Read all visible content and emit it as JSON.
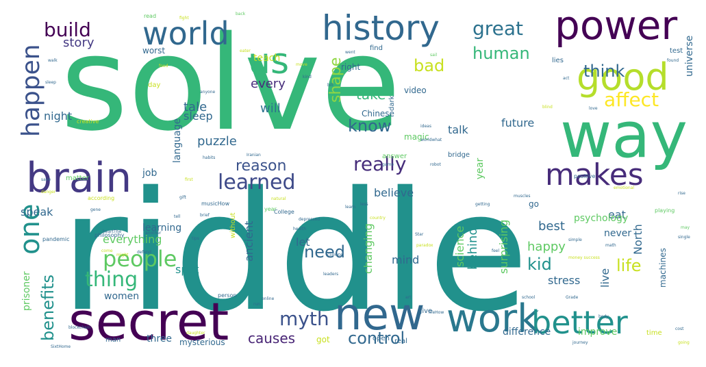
{
  "colors": {
    "green": "#35b779",
    "teal": "#21918c",
    "blue": "#31688e",
    "indigo": "#443983",
    "purple": "#440154",
    "lime": "#90d743",
    "yellow": "#c8e020"
  },
  "words": [
    {
      "id": "solve",
      "text": "solve",
      "color": "#35b779"
    },
    {
      "id": "riddle",
      "text": "riddle",
      "color": "#21918c"
    },
    {
      "id": "way",
      "text": "way",
      "color": "#35b779"
    },
    {
      "id": "secret",
      "text": "secret",
      "color": "#440154"
    },
    {
      "id": "history",
      "text": "history",
      "color": "#31688e"
    },
    {
      "id": "power",
      "text": "power",
      "color": "#440154"
    },
    {
      "id": "new",
      "text": "new",
      "color": "#31688e"
    },
    {
      "id": "work",
      "text": "work",
      "color": "#2a788e"
    },
    {
      "id": "brain",
      "text": "brain",
      "color": "#443983"
    },
    {
      "id": "world",
      "text": "world",
      "color": "#31688e"
    },
    {
      "id": "good",
      "text": "good",
      "color": "#b5de2b"
    },
    {
      "id": "us",
      "text": "us",
      "color": "#35b779"
    },
    {
      "id": "better",
      "text": "better",
      "color": "#21918c"
    },
    {
      "id": "makes",
      "text": "makes",
      "color": "#472c7a"
    },
    {
      "id": "happen",
      "text": "happen",
      "color": "#3b528b"
    },
    {
      "id": "one",
      "text": "one",
      "color": "#21918c"
    },
    {
      "id": "learned",
      "text": "learned",
      "color": "#3e4a89"
    },
    {
      "id": "people",
      "text": "people",
      "color": "#5ec962"
    },
    {
      "id": "thing",
      "text": "thing",
      "color": "#35b779"
    },
    {
      "id": "really",
      "text": "really",
      "color": "#472d7b"
    },
    {
      "id": "myth",
      "text": "myth",
      "color": "#3b528b"
    },
    {
      "id": "affect",
      "text": "affect",
      "color": "#fde725"
    },
    {
      "id": "great",
      "text": "great",
      "color": "#2c728e"
    },
    {
      "id": "build",
      "text": "build",
      "color": "#440154"
    },
    {
      "id": "know",
      "text": "know",
      "color": "#31688e"
    },
    {
      "id": "think",
      "text": "think",
      "color": "#31688e"
    },
    {
      "id": "human",
      "text": "human",
      "color": "#35b779"
    },
    {
      "id": "bad",
      "text": "bad",
      "color": "#c8e020"
    },
    {
      "id": "control",
      "text": "control",
      "color": "#31688e"
    },
    {
      "id": "benefits",
      "text": "benefits",
      "color": "#21918c"
    },
    {
      "id": "life",
      "text": "life",
      "color": "#c8e020"
    },
    {
      "id": "kid",
      "text": "kid",
      "color": "#21918c"
    },
    {
      "id": "need",
      "text": "need",
      "color": "#31688e"
    },
    {
      "id": "reason",
      "text": "reason",
      "color": "#3b528b"
    },
    {
      "id": "causes",
      "text": "causes",
      "color": "#482475"
    },
    {
      "id": "shape",
      "text": "shape",
      "color": "#90d743"
    },
    {
      "id": "take",
      "text": "take",
      "color": "#35b779"
    },
    {
      "id": "story",
      "text": "story",
      "color": "#443983"
    },
    {
      "id": "every",
      "text": "every",
      "color": "#472d7b"
    },
    {
      "id": "will",
      "text": "will",
      "color": "#2c728e"
    },
    {
      "id": "tale",
      "text": "tale",
      "color": "#31688e"
    },
    {
      "id": "sleep",
      "text": "sleep",
      "color": "#31688e"
    },
    {
      "id": "puzzle",
      "text": "puzzle",
      "color": "#31688e"
    },
    {
      "id": "night",
      "text": "night",
      "color": "#31688e"
    },
    {
      "id": "future",
      "text": "future",
      "color": "#31688e"
    },
    {
      "id": "talk",
      "text": "talk",
      "color": "#31688e"
    },
    {
      "id": "believe",
      "text": "believe",
      "color": "#31688e"
    },
    {
      "id": "behind",
      "text": "behind",
      "color": "#21918c"
    },
    {
      "id": "happy",
      "text": "happy",
      "color": "#5ec962"
    },
    {
      "id": "best",
      "text": "best",
      "color": "#31688e"
    },
    {
      "id": "eat",
      "text": "eat",
      "color": "#31688e"
    },
    {
      "id": "let",
      "text": "let",
      "color": "#31688e"
    },
    {
      "id": "mind",
      "text": "mind",
      "color": "#31688e"
    },
    {
      "id": "speak",
      "text": "speak",
      "color": "#31688e"
    },
    {
      "id": "everything",
      "text": "everything",
      "color": "#5ec962"
    },
    {
      "id": "ancient",
      "text": "ancient",
      "color": "#31688e"
    },
    {
      "id": "spot",
      "text": "spot",
      "color": "#21918c"
    },
    {
      "id": "women",
      "text": "women",
      "color": "#31688e"
    },
    {
      "id": "stress",
      "text": "stress",
      "color": "#31688e"
    },
    {
      "id": "live",
      "text": "live",
      "color": "#31688e"
    },
    {
      "id": "North",
      "text": "North",
      "color": "#31688e"
    },
    {
      "id": "science",
      "text": "science",
      "color": "#5ec962"
    },
    {
      "id": "surprising",
      "text": "surprising",
      "color": "#5ec962"
    },
    {
      "id": "changing",
      "text": "changing",
      "color": "#5ec962"
    },
    {
      "id": "year",
      "text": "year",
      "color": "#5ec962"
    },
    {
      "id": "language",
      "text": "language",
      "color": "#31688e"
    },
    {
      "id": "prisoner",
      "text": "prisoner",
      "color": "#5ec962"
    },
    {
      "id": "universe",
      "text": "universe",
      "color": "#31688e"
    },
    {
      "id": "psychology",
      "text": "psychology",
      "color": "#5ec962"
    },
    {
      "id": "machines",
      "text": "machines",
      "color": "#31688e"
    },
    {
      "id": "difference",
      "text": "difference",
      "color": "#31688e"
    },
    {
      "id": "improve",
      "text": "improve",
      "color": "#5ec962"
    },
    {
      "id": "mysterious",
      "text": "mysterious",
      "color": "#31688e"
    },
    {
      "id": "three",
      "text": "three",
      "color": "#31688e"
    },
    {
      "id": "never",
      "text": "never",
      "color": "#31688e"
    },
    {
      "id": "job",
      "text": "job",
      "color": "#31688e"
    },
    {
      "id": "learning",
      "text": "learning",
      "color": "#31688e"
    },
    {
      "id": "video",
      "text": "video",
      "color": "#31688e"
    },
    {
      "id": "Chinese",
      "text": "Chinese",
      "color": "#31688e"
    },
    {
      "id": "right",
      "text": "right",
      "color": "#31688e"
    },
    {
      "id": "teach",
      "text": "teach",
      "color": "#c8e020"
    },
    {
      "id": "worst",
      "text": "worst",
      "color": "#31688e"
    },
    {
      "id": "day",
      "text": "day",
      "color": "#c8e020"
    },
    {
      "id": "magic",
      "text": "magic",
      "color": "#5ec962"
    },
    {
      "id": "got",
      "text": "got",
      "color": "#c8e020"
    },
    {
      "id": "man",
      "text": "man",
      "color": "#31688e"
    },
    {
      "id": "go",
      "text": "go",
      "color": "#31688e"
    },
    {
      "id": "give",
      "text": "give",
      "color": "#31688e"
    },
    {
      "id": "real",
      "text": "real",
      "color": "#31688e"
    },
    {
      "id": "open",
      "text": "open",
      "color": "#31688e"
    },
    {
      "id": "dark",
      "text": "dark",
      "color": "#31688e"
    },
    {
      "id": "answer",
      "text": "answer",
      "color": "#5ec962"
    },
    {
      "id": "without",
      "text": "without",
      "color": "#c8e020"
    },
    {
      "id": "time",
      "text": "time",
      "color": "#c8e020"
    },
    {
      "id": "test",
      "text": "test",
      "color": "#31688e"
    },
    {
      "id": "lies",
      "text": "lies",
      "color": "#31688e"
    },
    {
      "id": "find",
      "text": "find",
      "color": "#31688e"
    },
    {
      "id": "bridge",
      "text": "bridge",
      "color": "#31688e"
    },
    {
      "id": "read",
      "text": "read",
      "color": "#5ec962"
    },
    {
      "id": "fight",
      "text": "fight",
      "color": "#c8e020"
    },
    {
      "id": "matter",
      "text": "matter",
      "color": "#5ec962"
    },
    {
      "id": "creative",
      "text": "creative",
      "color": "#c8e020"
    },
    {
      "id": "according",
      "text": "according",
      "color": "#c8e020"
    },
    {
      "id": "musicHow",
      "text": "musicHow",
      "color": "#31688e"
    },
    {
      "id": "year2",
      "text": "year",
      "color": "#5ec962"
    },
    {
      "id": "eat2",
      "text": "College",
      "color": "#31688e"
    },
    {
      "id": "philosophy",
      "text": "philosophy",
      "color": "#31688e"
    },
    {
      "id": "pandemic",
      "text": "pandemic",
      "color": "#31688e"
    },
    {
      "id": "food",
      "text": "food",
      "color": "#c8e020"
    },
    {
      "id": "health",
      "text": "health",
      "color": "#31688e"
    },
    {
      "id": "leaders",
      "text": "leaders",
      "color": "#31688e"
    },
    {
      "id": "robot",
      "text": "robot",
      "color": "#31688e"
    },
    {
      "id": "game",
      "text": "game",
      "color": "#31688e"
    },
    {
      "id": "positive",
      "text": "positive",
      "color": "#31688e"
    },
    {
      "id": "emotional",
      "text": "emotional",
      "color": "#c8e020"
    },
    {
      "id": "playing",
      "text": "playing",
      "color": "#5ec962"
    },
    {
      "id": "rise",
      "text": "rise",
      "color": "#31688e"
    },
    {
      "id": "may",
      "text": "may",
      "color": "#5ec962"
    },
    {
      "id": "single",
      "text": "single",
      "color": "#31688e"
    },
    {
      "id": "love",
      "text": "love",
      "color": "#31688e"
    },
    {
      "id": "simple",
      "text": "simple",
      "color": "#31688e"
    },
    {
      "id": "math",
      "text": "math",
      "color": "#31688e"
    },
    {
      "id": "money",
      "text": "money success",
      "color": "#c8e020"
    },
    {
      "id": "school",
      "text": "school",
      "color": "#31688e"
    },
    {
      "id": "grade",
      "text": "Grade",
      "color": "#31688e"
    },
    {
      "id": "body",
      "text": "body",
      "color": "#31688e"
    },
    {
      "id": "journey",
      "text": "journey",
      "color": "#31688e"
    },
    {
      "id": "going",
      "text": "going",
      "color": "#c8e020"
    },
    {
      "id": "cost",
      "text": "cost",
      "color": "#31688e"
    },
    {
      "id": "star",
      "text": "Star",
      "color": "#31688e"
    },
    {
      "id": "another",
      "text": "another",
      "color": "#31688e"
    },
    {
      "id": "person",
      "text": "person",
      "color": "#31688e"
    },
    {
      "id": "online",
      "text": "online",
      "color": "#31688e"
    },
    {
      "id": "climate",
      "text": "climate",
      "color": "#31688e"
    },
    {
      "id": "paradox",
      "text": "paradox",
      "color": "#c8e020"
    },
    {
      "id": "art",
      "text": "art",
      "color": "#31688e"
    },
    {
      "id": "run",
      "text": "run",
      "color": "#31688e"
    },
    {
      "id": "feel",
      "text": "feel",
      "color": "#31688e"
    },
    {
      "id": "country",
      "text": "country",
      "color": "#c8e020"
    },
    {
      "id": "getting",
      "text": "getting",
      "color": "#31688e"
    },
    {
      "id": "less",
      "text": "less",
      "color": "#31688e"
    },
    {
      "id": "learn",
      "text": "learn",
      "color": "#31688e"
    },
    {
      "id": "depressed",
      "text": "depressed",
      "color": "#31688e"
    },
    {
      "id": "natural",
      "text": "natural",
      "color": "#c8e020"
    },
    {
      "id": "brief",
      "text": "brief",
      "color": "#31688e"
    },
    {
      "id": "habits",
      "text": "habits",
      "color": "#31688e"
    },
    {
      "id": "Iranian",
      "text": "Iranian",
      "color": "#31688e"
    },
    {
      "id": "worldwhat",
      "text": "worldwhat",
      "color": "#31688e"
    },
    {
      "id": "ideas",
      "text": "ideas",
      "color": "#31688e"
    },
    {
      "id": "bill",
      "text": "bill",
      "color": "#31688e"
    },
    {
      "id": "anyone",
      "text": "anyone",
      "color": "#31688e"
    },
    {
      "id": "kind",
      "text": "kind",
      "color": "#31688e"
    },
    {
      "id": "move",
      "text": "move",
      "color": "#c8e020"
    },
    {
      "id": "danger",
      "text": "danger",
      "color": "#c8e020"
    },
    {
      "id": "save",
      "text": "save",
      "color": "#31688e"
    },
    {
      "id": "gift",
      "text": "gift",
      "color": "#31688e"
    },
    {
      "id": "tell",
      "text": "tell",
      "color": "#31688e"
    },
    {
      "id": "first",
      "text": "first",
      "color": "#c8e020"
    },
    {
      "id": "tips",
      "text": "tips",
      "color": "#31688e"
    },
    {
      "id": "daughter",
      "text": "daughter",
      "color": "#c8e020"
    },
    {
      "id": "lifehow",
      "text": "lifeHow",
      "color": "#31688e"
    },
    {
      "id": "muscles",
      "text": "muscles",
      "color": "#31688e"
    },
    {
      "id": "SixtHome",
      "text": "SixtHome",
      "color": "#31688e"
    },
    {
      "id": "blockchain",
      "text": "blockchain",
      "color": "#31688e"
    },
    {
      "id": "defend",
      "text": "defend",
      "color": "#31688e"
    },
    {
      "id": "might",
      "text": "might",
      "color": "#c8e020"
    },
    {
      "id": "heartThe",
      "text": "heartThe",
      "color": "#31688e"
    },
    {
      "id": "come",
      "text": "come",
      "color": "#c8e020"
    },
    {
      "id": "gene",
      "text": "gene",
      "color": "#31688e"
    },
    {
      "id": "back",
      "text": "back",
      "color": "#5ec962"
    },
    {
      "id": "eater",
      "text": "eater",
      "color": "#c8e020"
    },
    {
      "id": "went",
      "text": "went",
      "color": "#31688e"
    },
    {
      "id": "sail",
      "text": "sail",
      "color": "#5ec962"
    },
    {
      "id": "found",
      "text": "found",
      "color": "#31688e"
    },
    {
      "id": "act",
      "text": "act",
      "color": "#31688e"
    },
    {
      "id": "blind",
      "text": "blind",
      "color": "#c8e020"
    },
    {
      "id": "walk",
      "text": "walk",
      "color": "#31688e"
    },
    {
      "id": "sleep2",
      "text": "sleep",
      "color": "#31688e"
    }
  ]
}
